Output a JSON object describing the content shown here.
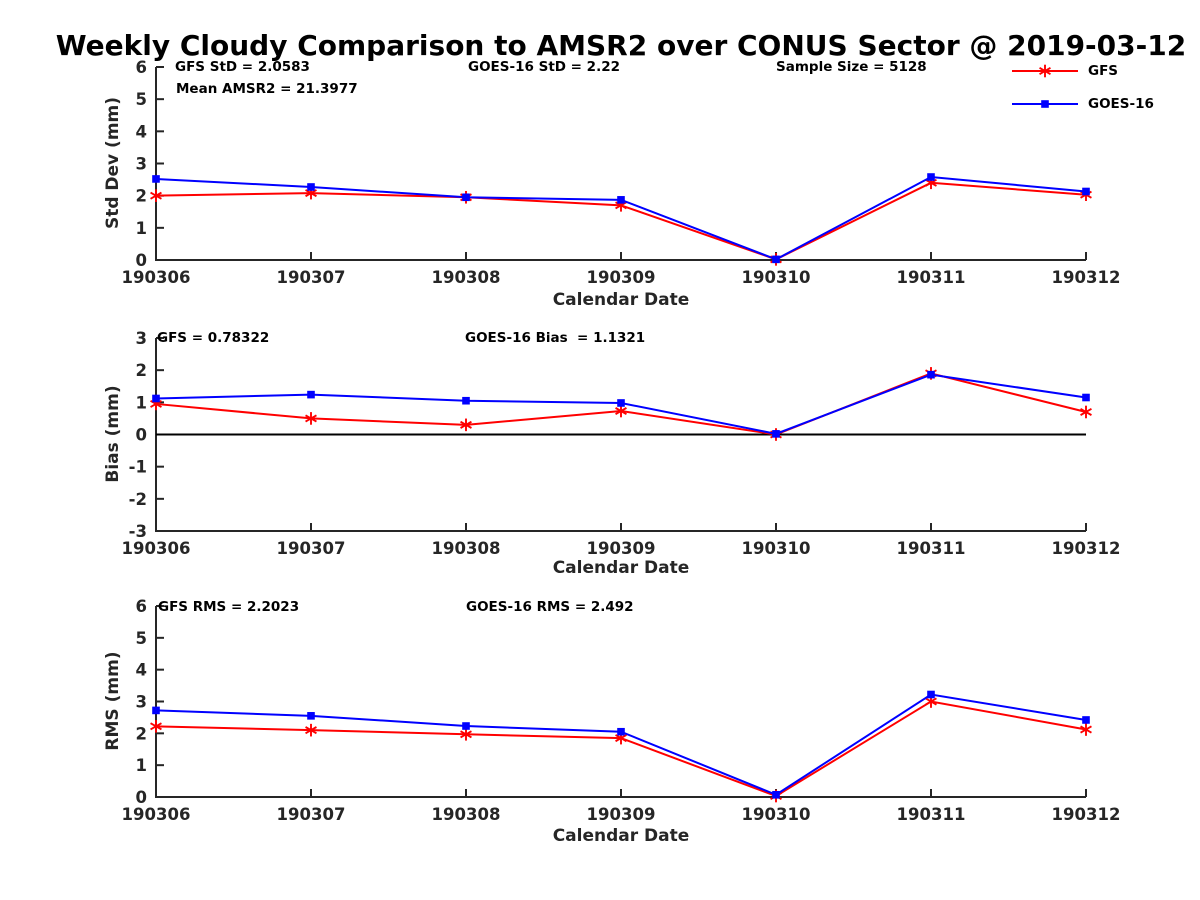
{
  "title": "Weekly Cloudy Comparison to AMSR2 over CONUS Sector @ 2019-03-12",
  "legend": {
    "items": [
      {
        "label": "GFS",
        "color": "#ff0000",
        "marker": "asterisk"
      },
      {
        "label": "GOES-16",
        "color": "#0000ff",
        "marker": "square"
      }
    ]
  },
  "colors": {
    "gfs_red": "#ff0000",
    "goes_blue": "#0000ff",
    "axis": "#262626",
    "zero_line": "#000000",
    "background": "#ffffff"
  },
  "chart_data": [
    {
      "type": "line",
      "categories": [
        "190306",
        "190307",
        "190308",
        "190309",
        "190310",
        "190311",
        "190312"
      ],
      "xlabel": "Calendar Date",
      "ylabel": "Std Dev (mm)",
      "ylim": [
        0,
        6
      ],
      "ytick_step": 1,
      "grid": false,
      "legend_position": "top-right-outside",
      "annotations": [
        "GFS StD = 2.0583",
        "Mean AMSR2 = 21.3977",
        "GOES-16 StD = 2.22",
        "Sample Size = 5128"
      ],
      "series": [
        {
          "name": "GFS",
          "color": "#ff0000",
          "marker": "asterisk",
          "values": [
            2.0,
            2.08,
            1.95,
            1.7,
            0.02,
            2.4,
            2.03
          ]
        },
        {
          "name": "GOES-16",
          "color": "#0000ff",
          "marker": "square",
          "values": [
            2.52,
            2.27,
            1.95,
            1.87,
            0.02,
            2.58,
            2.13
          ]
        }
      ]
    },
    {
      "type": "line",
      "categories": [
        "190306",
        "190307",
        "190308",
        "190309",
        "190310",
        "190311",
        "190312"
      ],
      "xlabel": "Calendar Date",
      "ylabel": "Bias (mm)",
      "ylim": [
        -3,
        3
      ],
      "ytick_step": 1,
      "grid": false,
      "zero_line": true,
      "annotations": [
        "GFS = 0.78322",
        "GOES-16 Bias  = 1.1321"
      ],
      "series": [
        {
          "name": "GFS",
          "color": "#ff0000",
          "marker": "asterisk",
          "values": [
            0.95,
            0.5,
            0.3,
            0.73,
            0.0,
            1.9,
            0.7
          ]
        },
        {
          "name": "GOES-16",
          "color": "#0000ff",
          "marker": "square",
          "values": [
            1.12,
            1.24,
            1.05,
            0.98,
            0.02,
            1.86,
            1.15
          ]
        }
      ]
    },
    {
      "type": "line",
      "categories": [
        "190306",
        "190307",
        "190308",
        "190309",
        "190310",
        "190311",
        "190312"
      ],
      "xlabel": "Calendar Date",
      "ylabel": "RMS (mm)",
      "ylim": [
        0,
        6
      ],
      "ytick_step": 1,
      "grid": false,
      "annotations": [
        "GFS RMS = 2.2023",
        "GOES-16 RMS = 2.492"
      ],
      "series": [
        {
          "name": "GFS",
          "color": "#ff0000",
          "marker": "asterisk",
          "values": [
            2.22,
            2.1,
            1.97,
            1.85,
            0.03,
            3.0,
            2.12
          ]
        },
        {
          "name": "GOES-16",
          "color": "#0000ff",
          "marker": "square",
          "values": [
            2.72,
            2.55,
            2.23,
            2.05,
            0.07,
            3.22,
            2.42
          ]
        }
      ]
    }
  ]
}
